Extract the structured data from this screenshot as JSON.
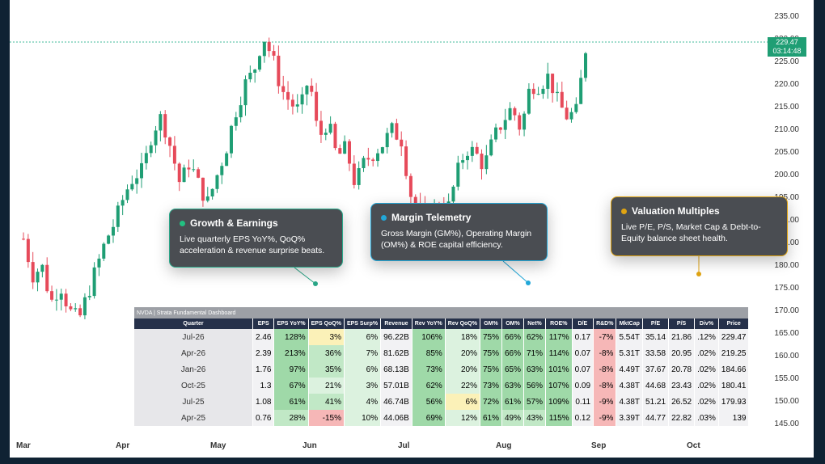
{
  "chart": {
    "y_ticks": [
      "235.00",
      "230.00",
      "225.00",
      "220.00",
      "215.00",
      "210.00",
      "205.00",
      "200.00",
      "195.00",
      "190.00",
      "185.00",
      "180.00",
      "175.00",
      "170.00",
      "165.00",
      "160.00",
      "155.00",
      "150.00",
      "145.00"
    ],
    "x_ticks": [
      "Mar",
      "Apr",
      "May",
      "Jun",
      "Jul",
      "Aug",
      "Sep",
      "Oct"
    ],
    "last_price": "229.47",
    "countdown": "03:14:48",
    "colors": {
      "up": "#1f9e74",
      "down": "#e64a5a",
      "last_line": "#3fb89a"
    }
  },
  "callouts": [
    {
      "title": "Growth & Earnings",
      "desc": "Live quarterly EPS YoY%, QoQ% acceleration & revenue surprise beats.",
      "dot_color": "#22c081",
      "border_color": "#2aa889"
    },
    {
      "title": "Margin Telemetry",
      "desc": "Gross Margin (GM%), Operating Margin (OM%) & ROE capital efficiency.",
      "dot_color": "#22a7d8",
      "border_color": "#22a7d8"
    },
    {
      "title": "Valuation Multiples",
      "desc": "Live P/E, P/S, Market Cap & Debt-to-Equity balance sheet health.",
      "dot_color": "#e0a412",
      "border_color": "#e0a412"
    }
  ],
  "dashboard": {
    "title": "NVDA | Strata Fundamental Dashboard",
    "headers": [
      "Quarter",
      "EPS",
      "EPS YoY%",
      "EPS QoQ%",
      "EPS Surp%",
      "Revenue",
      "Rev YoY%",
      "Rev QoQ%",
      "GM%",
      "OM%",
      "Net%",
      "ROE%",
      "D/E",
      "R&D%",
      "MktCap",
      "P/E",
      "P/S",
      "Div%",
      "Price"
    ],
    "rows": [
      [
        "Jul-26",
        "2.46",
        "128%",
        "3%",
        "6%",
        "96.22B",
        "106%",
        "18%",
        "75%",
        "66%",
        "62%",
        "117%",
        "0.17",
        "-7%",
        "5.54T",
        "35.14",
        "21.86",
        ".12%",
        "229.47"
      ],
      [
        "Apr-26",
        "2.39",
        "213%",
        "36%",
        "7%",
        "81.62B",
        "85%",
        "20%",
        "75%",
        "66%",
        "71%",
        "114%",
        "0.07",
        "-8%",
        "5.31T",
        "33.58",
        "20.95",
        ".02%",
        "219.25"
      ],
      [
        "Jan-26",
        "1.76",
        "97%",
        "35%",
        "6%",
        "68.13B",
        "73%",
        "20%",
        "75%",
        "65%",
        "63%",
        "101%",
        "0.07",
        "-8%",
        "4.49T",
        "37.67",
        "20.78",
        ".02%",
        "184.66"
      ],
      [
        "Oct-25",
        "1.3",
        "67%",
        "21%",
        "3%",
        "57.01B",
        "62%",
        "22%",
        "73%",
        "63%",
        "56%",
        "107%",
        "0.09",
        "-8%",
        "4.38T",
        "44.68",
        "23.43",
        ".02%",
        "180.41"
      ],
      [
        "Jul-25",
        "1.08",
        "61%",
        "41%",
        "4%",
        "46.74B",
        "56%",
        "6%",
        "72%",
        "61%",
        "57%",
        "109%",
        "0.11",
        "-9%",
        "4.38T",
        "51.21",
        "26.52",
        ".02%",
        "179.93"
      ],
      [
        "Apr-25",
        "0.76",
        "28%",
        "-15%",
        "10%",
        "44.06B",
        "69%",
        "12%",
        "61%",
        "49%",
        "43%",
        "115%",
        "0.12",
        "-9%",
        "3.39T",
        "44.77",
        "22.82",
        ".03%",
        "139"
      ]
    ],
    "cell_classes": [
      [
        "wt",
        "g3",
        "yl",
        "g1",
        "wt",
        "g3",
        "g1",
        "g3",
        "g3",
        "g3",
        "g3",
        "wt",
        "rd",
        "wt",
        "wt",
        "wt",
        "wt",
        "wt"
      ],
      [
        "wt",
        "g3",
        "g2",
        "g1",
        "wt",
        "g3",
        "g1",
        "g3",
        "g3",
        "g3",
        "g3",
        "wt",
        "rd",
        "wt",
        "wt",
        "wt",
        "wt",
        "wt"
      ],
      [
        "wt",
        "g3",
        "g2",
        "g1",
        "wt",
        "g3",
        "g1",
        "g3",
        "g3",
        "g3",
        "g3",
        "wt",
        "rd",
        "wt",
        "wt",
        "wt",
        "wt",
        "wt"
      ],
      [
        "wt",
        "g3",
        "g1",
        "g1",
        "wt",
        "g3",
        "g1",
        "g3",
        "g3",
        "g3",
        "g3",
        "wt",
        "rd",
        "wt",
        "wt",
        "wt",
        "wt",
        "wt"
      ],
      [
        "wt",
        "g3",
        "g2",
        "g1",
        "wt",
        "g3",
        "yl",
        "g3",
        "g3",
        "g3",
        "g3",
        "wt",
        "rd",
        "wt",
        "wt",
        "wt",
        "wt",
        "wt"
      ],
      [
        "wt",
        "g2",
        "rd",
        "g1",
        "wt",
        "g3",
        "g1",
        "g3",
        "g2",
        "g2",
        "g3",
        "wt",
        "rd",
        "wt",
        "wt",
        "wt",
        "wt",
        "wt"
      ]
    ]
  }
}
